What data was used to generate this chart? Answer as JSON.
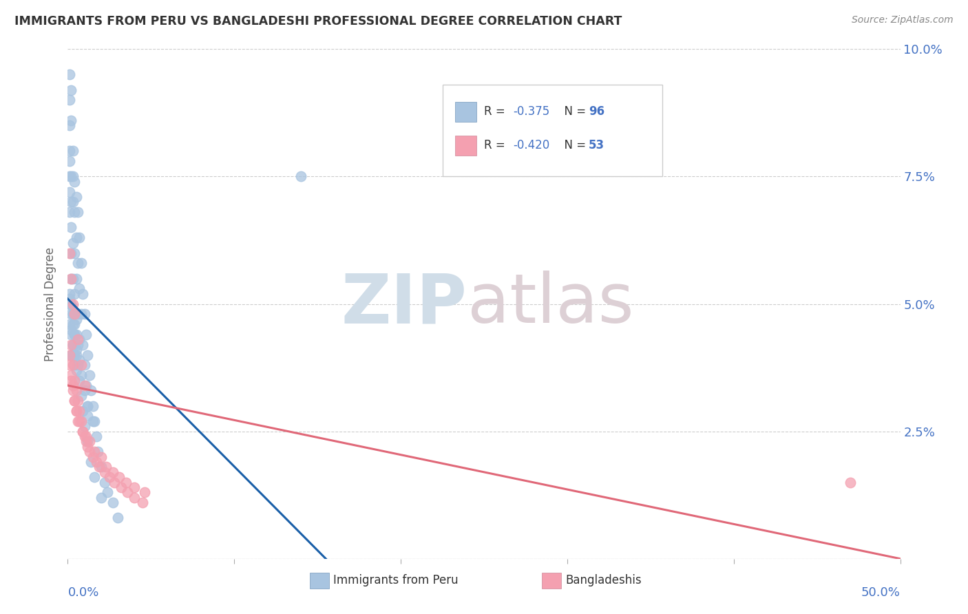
{
  "title": "IMMIGRANTS FROM PERU VS BANGLADESHI PROFESSIONAL DEGREE CORRELATION CHART",
  "source": "Source: ZipAtlas.com",
  "ylabel": "Professional Degree",
  "xlim": [
    0.0,
    0.5
  ],
  "ylim": [
    0.0,
    0.1
  ],
  "yticks": [
    0.0,
    0.025,
    0.05,
    0.075,
    0.1
  ],
  "ytick_labels": [
    "",
    "2.5%",
    "5.0%",
    "7.5%",
    "10.0%"
  ],
  "blue_color": "#a8c4e0",
  "pink_color": "#f4a0b0",
  "blue_line_color": "#1a5fa8",
  "pink_line_color": "#e06878",
  "background_color": "#ffffff",
  "grid_color": "#cccccc",
  "title_color": "#333333",
  "axis_label_color": "#4472c4",
  "blue_line_x": [
    0.0,
    0.155
  ],
  "blue_line_y": [
    0.051,
    0.0
  ],
  "pink_line_x": [
    0.0,
    0.5
  ],
  "pink_line_y": [
    0.034,
    0.0
  ],
  "blue_scatter_x": [
    0.001,
    0.001,
    0.001,
    0.001,
    0.001,
    0.001,
    0.001,
    0.001,
    0.002,
    0.002,
    0.002,
    0.002,
    0.002,
    0.002,
    0.002,
    0.002,
    0.002,
    0.002,
    0.003,
    0.003,
    0.003,
    0.003,
    0.003,
    0.003,
    0.003,
    0.004,
    0.004,
    0.004,
    0.004,
    0.004,
    0.004,
    0.005,
    0.005,
    0.005,
    0.005,
    0.005,
    0.006,
    0.006,
    0.006,
    0.007,
    0.007,
    0.007,
    0.008,
    0.008,
    0.009,
    0.009,
    0.01,
    0.01,
    0.011,
    0.011,
    0.012,
    0.012,
    0.013,
    0.014,
    0.015,
    0.016,
    0.017,
    0.018,
    0.02,
    0.022,
    0.024,
    0.027,
    0.03,
    0.001,
    0.001,
    0.002,
    0.002,
    0.002,
    0.003,
    0.003,
    0.004,
    0.004,
    0.005,
    0.005,
    0.006,
    0.007,
    0.008,
    0.009,
    0.01,
    0.012,
    0.014,
    0.016,
    0.02,
    0.001,
    0.002,
    0.003,
    0.004,
    0.005,
    0.006,
    0.007,
    0.008,
    0.01,
    0.012,
    0.015,
    0.001,
    0.012,
    0.14
  ],
  "blue_scatter_y": [
    0.095,
    0.09,
    0.085,
    0.08,
    0.078,
    0.075,
    0.072,
    0.068,
    0.092,
    0.086,
    0.075,
    0.07,
    0.065,
    0.06,
    0.055,
    0.05,
    0.045,
    0.04,
    0.08,
    0.075,
    0.07,
    0.062,
    0.055,
    0.048,
    0.042,
    0.074,
    0.068,
    0.06,
    0.052,
    0.044,
    0.038,
    0.071,
    0.063,
    0.055,
    0.047,
    0.04,
    0.068,
    0.058,
    0.048,
    0.063,
    0.053,
    0.043,
    0.058,
    0.048,
    0.052,
    0.042,
    0.048,
    0.038,
    0.044,
    0.034,
    0.04,
    0.03,
    0.036,
    0.033,
    0.03,
    0.027,
    0.024,
    0.021,
    0.018,
    0.015,
    0.013,
    0.011,
    0.008,
    0.05,
    0.046,
    0.048,
    0.044,
    0.04,
    0.046,
    0.042,
    0.044,
    0.04,
    0.041,
    0.037,
    0.038,
    0.035,
    0.032,
    0.029,
    0.026,
    0.023,
    0.019,
    0.016,
    0.012,
    0.052,
    0.05,
    0.048,
    0.046,
    0.044,
    0.042,
    0.039,
    0.036,
    0.033,
    0.03,
    0.027,
    0.051,
    0.028,
    0.075
  ],
  "pink_scatter_x": [
    0.001,
    0.002,
    0.002,
    0.003,
    0.003,
    0.004,
    0.004,
    0.005,
    0.005,
    0.006,
    0.006,
    0.007,
    0.008,
    0.009,
    0.01,
    0.011,
    0.012,
    0.013,
    0.015,
    0.017,
    0.019,
    0.022,
    0.025,
    0.028,
    0.032,
    0.036,
    0.04,
    0.045,
    0.001,
    0.002,
    0.003,
    0.004,
    0.005,
    0.007,
    0.009,
    0.011,
    0.013,
    0.016,
    0.02,
    0.023,
    0.027,
    0.031,
    0.035,
    0.04,
    0.046,
    0.001,
    0.002,
    0.003,
    0.004,
    0.006,
    0.008,
    0.01,
    0.47
  ],
  "pink_scatter_y": [
    0.04,
    0.042,
    0.036,
    0.038,
    0.034,
    0.035,
    0.031,
    0.033,
    0.029,
    0.031,
    0.027,
    0.029,
    0.027,
    0.025,
    0.024,
    0.023,
    0.022,
    0.021,
    0.02,
    0.019,
    0.018,
    0.017,
    0.016,
    0.015,
    0.014,
    0.013,
    0.012,
    0.011,
    0.038,
    0.035,
    0.033,
    0.031,
    0.029,
    0.027,
    0.025,
    0.024,
    0.023,
    0.021,
    0.02,
    0.018,
    0.017,
    0.016,
    0.015,
    0.014,
    0.013,
    0.06,
    0.055,
    0.05,
    0.048,
    0.043,
    0.038,
    0.034,
    0.015
  ]
}
